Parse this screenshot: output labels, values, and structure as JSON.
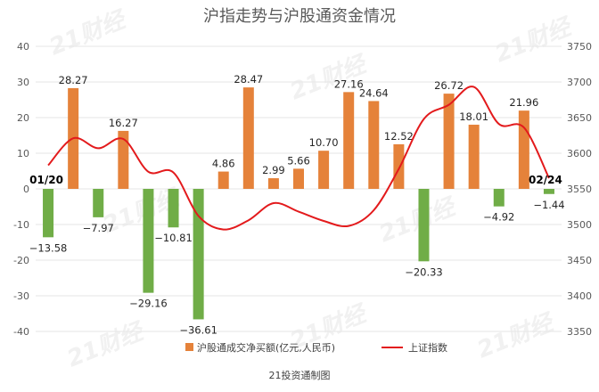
{
  "chart_data": {
    "type": "bar+line",
    "title": "沪指走势与沪股通资金情况",
    "source": "21投资通制图",
    "watermark": "21财经",
    "left_axis": {
      "ylim": [
        -40,
        40
      ],
      "ticks": [
        40,
        30,
        20,
        10,
        0,
        -10,
        -20,
        -30,
        -40
      ]
    },
    "right_axis": {
      "ylim": [
        3350,
        3750
      ],
      "ticks": [
        3750,
        3700,
        3650,
        3600,
        3550,
        3500,
        3450,
        3400,
        3350
      ]
    },
    "bar_series": {
      "name": "沪股通成交净买额(亿元,人民币)",
      "positive_color": "#e5823a",
      "negative_color": "#70ad47",
      "values": [
        -13.58,
        28.27,
        -7.97,
        16.27,
        -29.16,
        -10.81,
        -36.61,
        4.86,
        28.47,
        2.99,
        5.66,
        10.7,
        27.16,
        24.64,
        12.52,
        -20.33,
        26.72,
        18.01,
        -4.92,
        21.96,
        -1.44
      ],
      "labels": [
        "−13.58",
        "28.27",
        "−7.97",
        "16.27",
        "−29.16",
        "−10.81",
        "−36.61",
        "4.86",
        "28.47",
        "2.99",
        "5.66",
        "10.70",
        "27.16",
        "24.64",
        "12.52",
        "−20.33",
        "26.72",
        "18.01",
        "−4.92",
        "21.96",
        "−1.44"
      ]
    },
    "line_series": {
      "name": "上证指数",
      "color": "#e31a1c",
      "values": [
        3583,
        3621,
        3607,
        3620,
        3574,
        3573,
        3512,
        3493,
        3506,
        3530,
        3518,
        3505,
        3498,
        3520,
        3578,
        3648,
        3668,
        3693,
        3641,
        3636,
        3565
      ]
    },
    "date_labels": {
      "start": "01/20",
      "end": "02/24"
    }
  }
}
